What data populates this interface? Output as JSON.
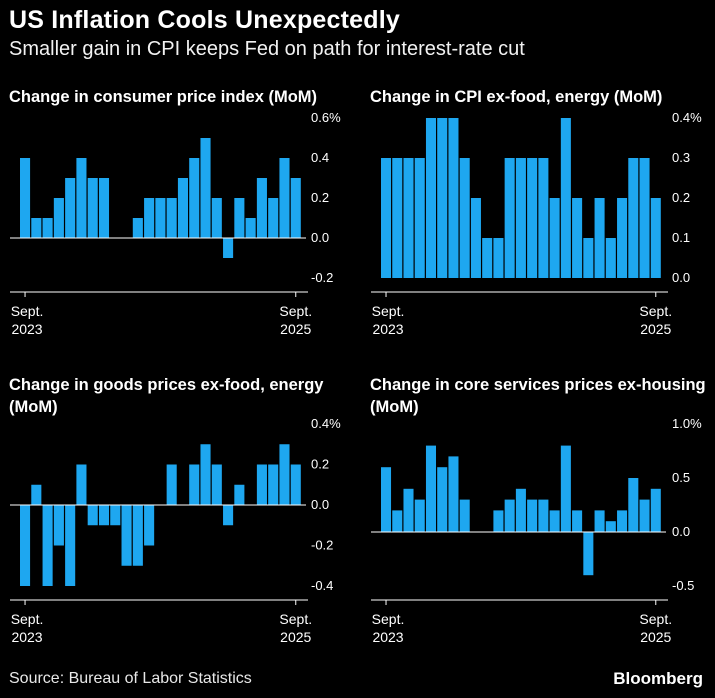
{
  "headline": "US Inflation Cools Unexpectedly",
  "subhead": "Smaller gain in CPI keeps Fed on path for interest-rate cut",
  "source": "Source: Bureau of Labor Statistics",
  "brand": "Bloomberg",
  "colors": {
    "bar": "#1ea7f0",
    "background": "#000000",
    "text": "#ffffff",
    "grid": "#444444"
  },
  "chart_data": [
    {
      "type": "bar",
      "title": "Change in consumer price index (MoM)",
      "x_start_label": "Sept.\n2023",
      "x_end_label": "Sept.\n2025",
      "unit": "%",
      "yticks": [
        "0.6%",
        "0.4",
        "0.2",
        "0.0",
        "-0.2"
      ],
      "ylim": [
        -0.2,
        0.6
      ],
      "values": [
        0.4,
        0.1,
        0.1,
        0.2,
        0.3,
        0.4,
        0.3,
        0.3,
        0.0,
        0.0,
        0.1,
        0.2,
        0.2,
        0.2,
        0.3,
        0.4,
        0.5,
        0.2,
        -0.1,
        0.2,
        0.1,
        0.3,
        0.2,
        0.4,
        0.3
      ]
    },
    {
      "type": "bar",
      "title": "Change in CPI ex-food, energy (MoM)",
      "x_start_label": "Sept.\n2023",
      "x_end_label": "Sept.\n2025",
      "unit": "%",
      "yticks": [
        "0.4%",
        "0.3",
        "0.2",
        "0.1",
        "0.0"
      ],
      "ylim": [
        0.0,
        0.4
      ],
      "values": [
        0.3,
        0.3,
        0.3,
        0.3,
        0.4,
        0.4,
        0.4,
        0.3,
        0.2,
        0.1,
        0.1,
        0.3,
        0.3,
        0.3,
        0.3,
        0.2,
        0.4,
        0.2,
        0.1,
        0.2,
        0.1,
        0.2,
        0.3,
        0.3,
        0.2
      ]
    },
    {
      "type": "bar",
      "title": "Change in goods prices ex-food, energy (MoM)",
      "x_start_label": "Sept.\n2023",
      "x_end_label": "Sept.\n2025",
      "unit": "%",
      "yticks": [
        "0.4%",
        "0.2",
        "0.0",
        "-0.2",
        "-0.4"
      ],
      "ylim": [
        -0.4,
        0.4
      ],
      "values": [
        -0.4,
        0.1,
        -0.4,
        -0.2,
        -0.4,
        0.2,
        -0.1,
        -0.1,
        -0.1,
        -0.3,
        -0.3,
        -0.2,
        0.0,
        0.2,
        0.0,
        0.2,
        0.3,
        0.2,
        -0.1,
        0.1,
        0.0,
        0.2,
        0.2,
        0.3,
        0.2
      ]
    },
    {
      "type": "bar",
      "title": "Change in core services prices ex-housing (MoM)",
      "x_start_label": "Sept.\n2023",
      "x_end_label": "Sept.\n2025",
      "unit": "%",
      "yticks": [
        "1.0%",
        "0.5",
        "0.0",
        "-0.5"
      ],
      "ylim": [
        -0.5,
        1.0
      ],
      "values": [
        0.6,
        0.2,
        0.4,
        0.3,
        0.8,
        0.6,
        0.7,
        0.3,
        0.0,
        0.0,
        0.2,
        0.3,
        0.4,
        0.3,
        0.3,
        0.2,
        0.8,
        0.2,
        -0.4,
        0.2,
        0.1,
        0.2,
        0.5,
        0.3,
        0.4
      ]
    }
  ]
}
